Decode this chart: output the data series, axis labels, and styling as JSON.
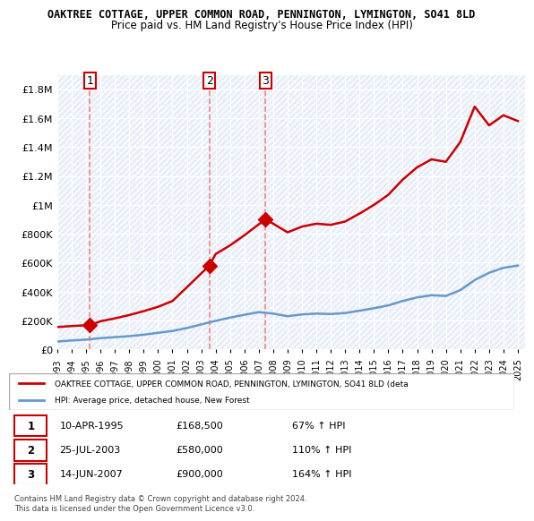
{
  "title": "OAKTREE COTTAGE, UPPER COMMON ROAD, PENNINGTON, LYMINGTON, SO41 8LD",
  "subtitle": "Price paid vs. HM Land Registry's House Price Index (HPI)",
  "sale_dates": [
    1995.27,
    2003.56,
    2007.45
  ],
  "sale_prices": [
    168500,
    580000,
    900000
  ],
  "sale_labels": [
    "1",
    "2",
    "3"
  ],
  "hpi_line_color": "#6699CC",
  "price_line_color": "#CC0000",
  "sale_marker_color": "#CC0000",
  "vline_color": "#FF4444",
  "background_hatch_color": "#E8EEF8",
  "ylim": [
    0,
    1900000
  ],
  "xlim": [
    1993,
    2025.5
  ],
  "yticks": [
    0,
    200000,
    400000,
    600000,
    800000,
    1000000,
    1200000,
    1400000,
    1600000,
    1800000
  ],
  "ytick_labels": [
    "£0",
    "£200K",
    "£400K",
    "£600K",
    "£800K",
    "£1M",
    "£1.2M",
    "£1.4M",
    "£1.6M",
    "£1.8M"
  ],
  "xticks": [
    1993,
    1994,
    1995,
    1996,
    1997,
    1998,
    1999,
    2000,
    2001,
    2002,
    2003,
    2004,
    2005,
    2006,
    2007,
    2008,
    2009,
    2010,
    2011,
    2012,
    2013,
    2014,
    2015,
    2016,
    2017,
    2018,
    2019,
    2020,
    2021,
    2022,
    2023,
    2024,
    2025
  ],
  "legend_price_label": "OAKTREE COTTAGE, UPPER COMMON ROAD, PENNINGTON, LYMINGTON, SO41 8LD (deta",
  "legend_hpi_label": "HPI: Average price, detached house, New Forest",
  "table_data": [
    [
      "1",
      "10-APR-1995",
      "£168,500",
      "67% ↑ HPI"
    ],
    [
      "2",
      "25-JUL-2003",
      "£580,000",
      "110% ↑ HPI"
    ],
    [
      "3",
      "14-JUN-2007",
      "£900,000",
      "164% ↑ HPI"
    ]
  ],
  "footer_text": "Contains HM Land Registry data © Crown copyright and database right 2024.\nThis data is licensed under the Open Government Licence v3.0.",
  "hpi_x": [
    1993,
    1994,
    1995,
    1996,
    1997,
    1998,
    1999,
    2000,
    2001,
    2002,
    2003,
    2004,
    2005,
    2006,
    2007,
    2008,
    2009,
    2010,
    2011,
    2012,
    2013,
    2014,
    2015,
    2016,
    2017,
    2018,
    2019,
    2020,
    2021,
    2022,
    2023,
    2024,
    2025
  ],
  "hpi_y": [
    55000,
    62000,
    68000,
    78000,
    85000,
    92000,
    102000,
    115000,
    128000,
    148000,
    173000,
    198000,
    220000,
    240000,
    258000,
    248000,
    230000,
    242000,
    248000,
    245000,
    252000,
    268000,
    285000,
    305000,
    335000,
    360000,
    375000,
    370000,
    410000,
    480000,
    530000,
    565000,
    580000
  ],
  "price_x": [
    1993,
    1994,
    1995.27,
    1996,
    1997,
    1998,
    1999,
    2000,
    2001,
    2002,
    2003.56,
    2004,
    2005,
    2006,
    2007.45,
    2008,
    2009,
    2010,
    2011,
    2012,
    2013,
    2014,
    2015,
    2016,
    2017,
    2018,
    2019,
    2020,
    2021,
    2022,
    2023,
    2024,
    2025
  ],
  "price_y": [
    155000,
    162000,
    168500,
    195000,
    215000,
    238000,
    265000,
    295000,
    335000,
    430000,
    580000,
    660000,
    720000,
    790000,
    900000,
    870000,
    810000,
    850000,
    870000,
    862000,
    885000,
    940000,
    1000000,
    1070000,
    1175000,
    1260000,
    1315000,
    1298000,
    1435000,
    1680000,
    1550000,
    1620000,
    1580000
  ]
}
